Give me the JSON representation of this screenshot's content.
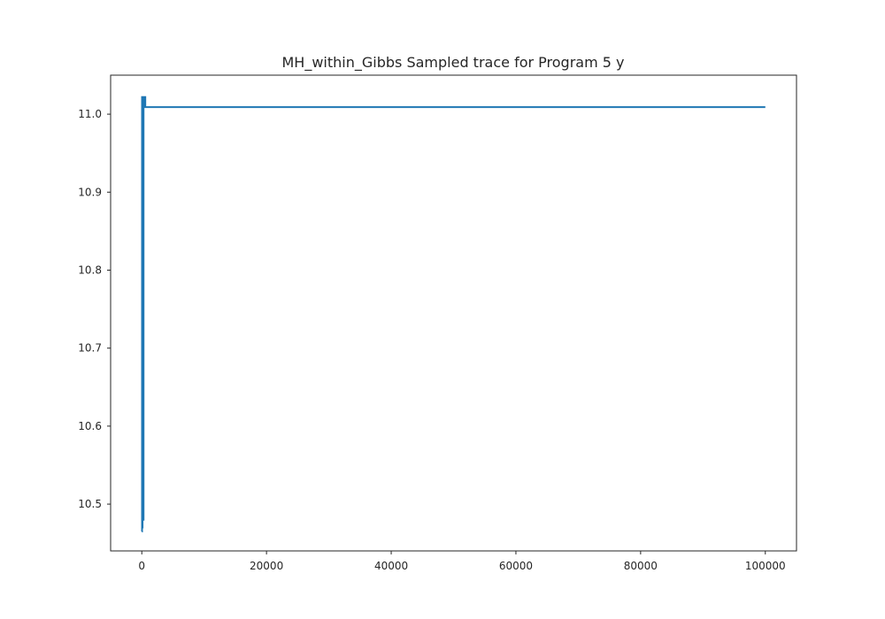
{
  "chart_data": {
    "type": "line",
    "title": "MH_within_Gibbs Sampled trace for Program 5 y",
    "xlabel": "",
    "ylabel": "",
    "xlim": [
      -5000,
      105000
    ],
    "ylim": [
      10.44,
      11.05
    ],
    "xticks": [
      0,
      20000,
      40000,
      60000,
      80000,
      100000
    ],
    "xtick_labels": [
      "0",
      "20000",
      "40000",
      "60000",
      "80000",
      "100000"
    ],
    "yticks": [
      10.5,
      10.6,
      10.7,
      10.8,
      10.9,
      11.0
    ],
    "ytick_labels": [
      "10.5",
      "10.6",
      "10.7",
      "10.8",
      "10.9",
      "11.0"
    ],
    "grid": false,
    "legend": "none",
    "series": [
      {
        "color": "#1f77b4",
        "x": [
          0,
          40,
          80,
          120,
          160,
          200,
          240,
          280,
          300,
          320,
          360,
          400,
          440,
          480,
          500,
          520,
          560,
          600,
          1000,
          20000,
          40000,
          60000,
          80000,
          99999
        ],
        "y": [
          10.465,
          11.022,
          10.47,
          11.02,
          10.5,
          11.018,
          10.48,
          11.015,
          11.022,
          11.022,
          11.022,
          11.022,
          11.022,
          11.022,
          11.022,
          11.022,
          11.009,
          11.009,
          11.009,
          11.009,
          11.009,
          11.009,
          11.009,
          11.009
        ]
      }
    ]
  }
}
